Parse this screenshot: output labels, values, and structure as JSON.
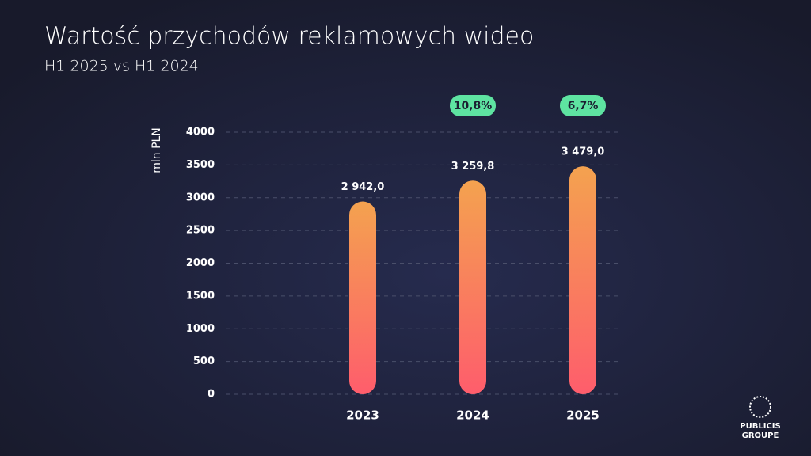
{
  "chart_data": {
    "type": "bar",
    "title": "Wartość przychodów reklamowych wideo",
    "subtitle": "H1 2025 vs H1 2024",
    "y_label": "mln PLN",
    "categories": [
      "2023",
      "2024",
      "2025"
    ],
    "values": [
      2942.0,
      3259.8,
      3479.0
    ],
    "value_labels": [
      "2 942,0",
      "3 259,8",
      "3 479,0"
    ],
    "growth_labels": [
      null,
      "10,8%",
      "6,7%"
    ],
    "gradient": [
      "#f4a24f",
      "#fe5d6c"
    ],
    "growth_color": "#5ee3a1",
    "ylim": [
      0,
      4000
    ],
    "yticks": [
      0,
      500,
      1000,
      1500,
      2000,
      2500,
      3000,
      3500,
      4000
    ],
    "grid": true
  },
  "logo": [
    "PUBLICIS",
    "GROUPE"
  ]
}
